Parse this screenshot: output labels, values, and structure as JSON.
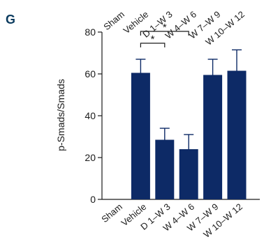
{
  "panel_label": "G",
  "chart_data": {
    "type": "bar",
    "ylabel": "p-Smads/Smads",
    "ylim": [
      0,
      80
    ],
    "yticks": [
      0,
      20,
      40,
      60,
      80
    ],
    "categories": [
      "Sham",
      "Vehicle",
      "D 1–W 3",
      "W 4–W 6",
      "W 7–W 9",
      "W 10–W 12"
    ],
    "values": [
      0,
      60.5,
      28.5,
      24,
      59.5,
      61.5
    ],
    "errors": [
      0,
      6.5,
      5.5,
      7,
      7.5,
      10
    ],
    "bar_color": "#0d2a66",
    "significance": [
      {
        "from": 1,
        "to": 2,
        "label": "*"
      },
      {
        "from": 1,
        "to": 3,
        "label": "*"
      }
    ],
    "top_axis_labels": [
      "Sham",
      "Vehicle",
      "D 1–W 3",
      "W 4–W 6",
      "W 7–W 9",
      "W 10–W 12"
    ]
  }
}
